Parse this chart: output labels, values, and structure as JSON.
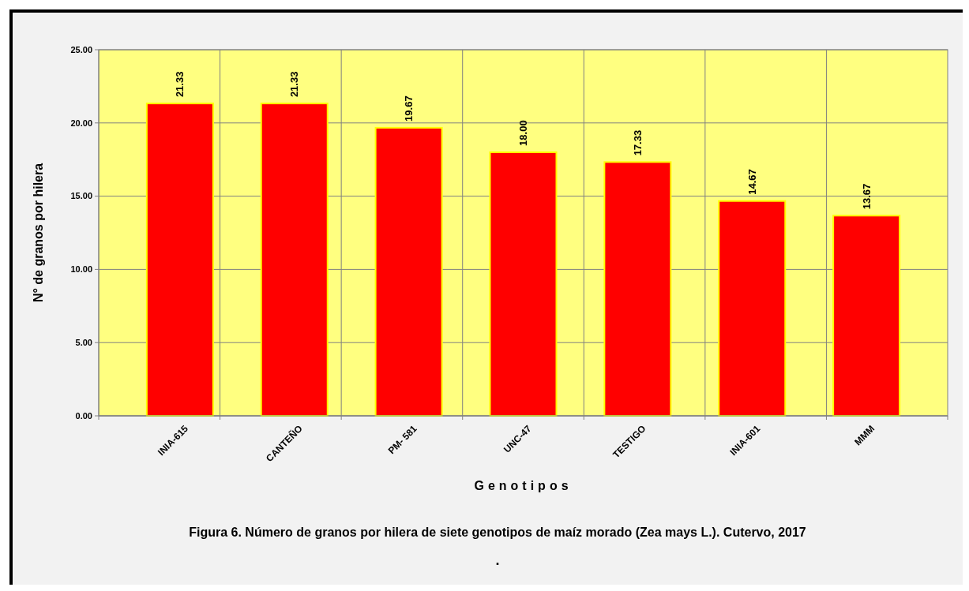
{
  "chart_data": {
    "type": "bar",
    "xlabel": "Genotipos",
    "ylabel": "N° de granos por hilera",
    "categories": [
      "INIA-615",
      "CANTEÑO",
      "PM- 581",
      "UNC-47",
      "TESTIGO",
      "INIA-601",
      "MMM"
    ],
    "values": [
      21.33,
      21.33,
      19.67,
      18.0,
      17.33,
      14.67,
      13.67
    ],
    "color": "#ff0000",
    "ylim": [
      0,
      25
    ],
    "yticks": [
      {
        "value": 0,
        "label": "0.00"
      },
      {
        "value": 5,
        "label": "5.00"
      },
      {
        "value": 10,
        "label": "10.00"
      },
      {
        "value": 15,
        "label": "15.00"
      },
      {
        "value": 20,
        "label": "20.00"
      },
      {
        "value": 25,
        "label": "25.00"
      }
    ],
    "value_labels": [
      "21.33",
      "21.33",
      "19.67",
      "18.00",
      "17.33",
      "14.67",
      "13.67"
    ],
    "grid": true,
    "annotations": [
      "Figura 6.  Número de granos por hilera de siete genotipos de maíz morado (Zea mays L.). Cutervo, 2017",
      "."
    ]
  }
}
